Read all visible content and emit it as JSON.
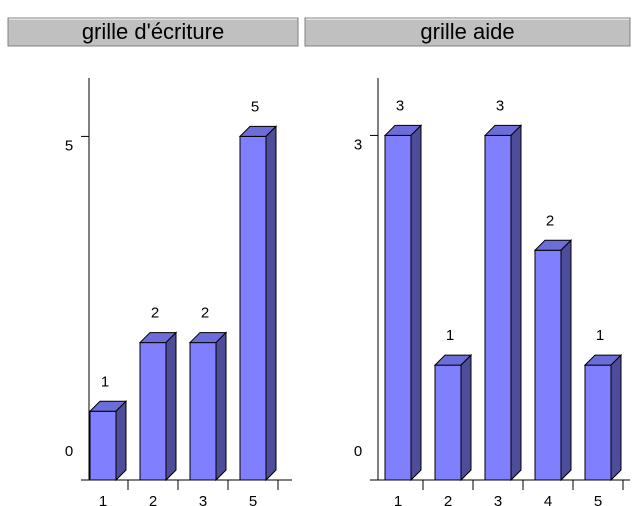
{
  "chart_data": [
    {
      "type": "bar",
      "title": "grille d'écriture",
      "categories": [
        "1",
        "2",
        "3",
        "5"
      ],
      "values": [
        1,
        2,
        2,
        5
      ],
      "color": "#8080ff",
      "ylim": [
        0,
        5.85
      ],
      "yticks": [
        0,
        5
      ]
    },
    {
      "type": "bar",
      "title": "grille aide",
      "categories": [
        "1",
        "2",
        "3",
        "4",
        "5"
      ],
      "values": [
        3,
        1,
        3,
        2,
        1
      ],
      "color": "#8080ff",
      "ylim": [
        0,
        3.5
      ],
      "yticks": [
        0,
        3
      ]
    }
  ]
}
